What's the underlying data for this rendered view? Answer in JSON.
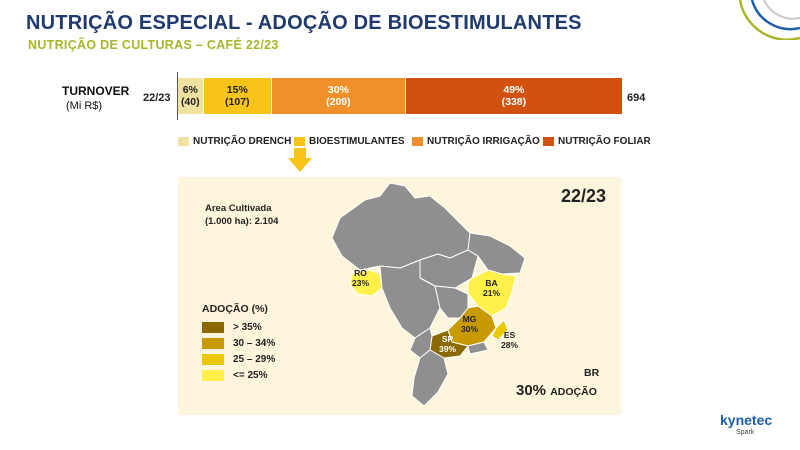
{
  "header": {
    "title": "NUTRIÇÃO ESPECIAL - ADOÇÃO DE BIOESTIMULANTES",
    "subtitle": "NUTRIÇÃO DE CULTURAS – CAFÉ 22/23"
  },
  "chart_data": [
    {
      "type": "bar",
      "orientation": "horizontal-stacked",
      "category_label": "22/23",
      "ylabel": "TURNOVER",
      "yunit": "(Mi R$)",
      "total": "694",
      "series": [
        {
          "name": "NUTRIÇÃO DRENCH",
          "share": 6,
          "share_label": "6%",
          "value": 40,
          "value_label": "(40)",
          "color": "#f0e2a0"
        },
        {
          "name": "BIOESTIMULANTES",
          "share": 15,
          "share_label": "15%",
          "value": 107,
          "value_label": "(107)",
          "color": "#f8c41a"
        },
        {
          "name": "NUTRIÇÃO IRRIGAÇÃO",
          "share": 30,
          "share_label": "30%",
          "value": 209,
          "value_label": "(209)",
          "color": "#f0902a"
        },
        {
          "name": "NUTRIÇÃO FOLIAR",
          "share": 49,
          "share_label": "49%",
          "value": 338,
          "value_label": "(338)",
          "color": "#d0520e"
        }
      ],
      "legend_position": "bottom"
    },
    {
      "type": "map",
      "title": "22/23",
      "note_line1": "Area Cultivada",
      "note_line2": "(1.000 ha): 2.104",
      "legend_title": "ADOÇÃO (%)",
      "legend": [
        {
          "label": "> 35%",
          "color": "#8a6a00"
        },
        {
          "label": "30 – 34%",
          "color": "#c99a00"
        },
        {
          "label": "25 – 29%",
          "color": "#e9c800"
        },
        {
          "label": "<= 25%",
          "color": "#fff04a"
        }
      ],
      "states": [
        {
          "code": "RO",
          "value": 23,
          "label": "23%",
          "color": "#fff04a"
        },
        {
          "code": "BA",
          "value": 21,
          "label": "21%",
          "color": "#fff04a"
        },
        {
          "code": "MG",
          "value": 30,
          "label": "30%",
          "color": "#c99a00"
        },
        {
          "code": "SP",
          "value": 39,
          "label": "39%",
          "color": "#8a6a00"
        },
        {
          "code": "ES",
          "value": 28,
          "label": "28%",
          "color": "#e9c800"
        }
      ],
      "summary_label": "BR",
      "summary_value": "30%",
      "summary_suffix": "ADOÇÃO"
    }
  ],
  "brand": {
    "logo": "kynetec",
    "sub": "Spark"
  }
}
